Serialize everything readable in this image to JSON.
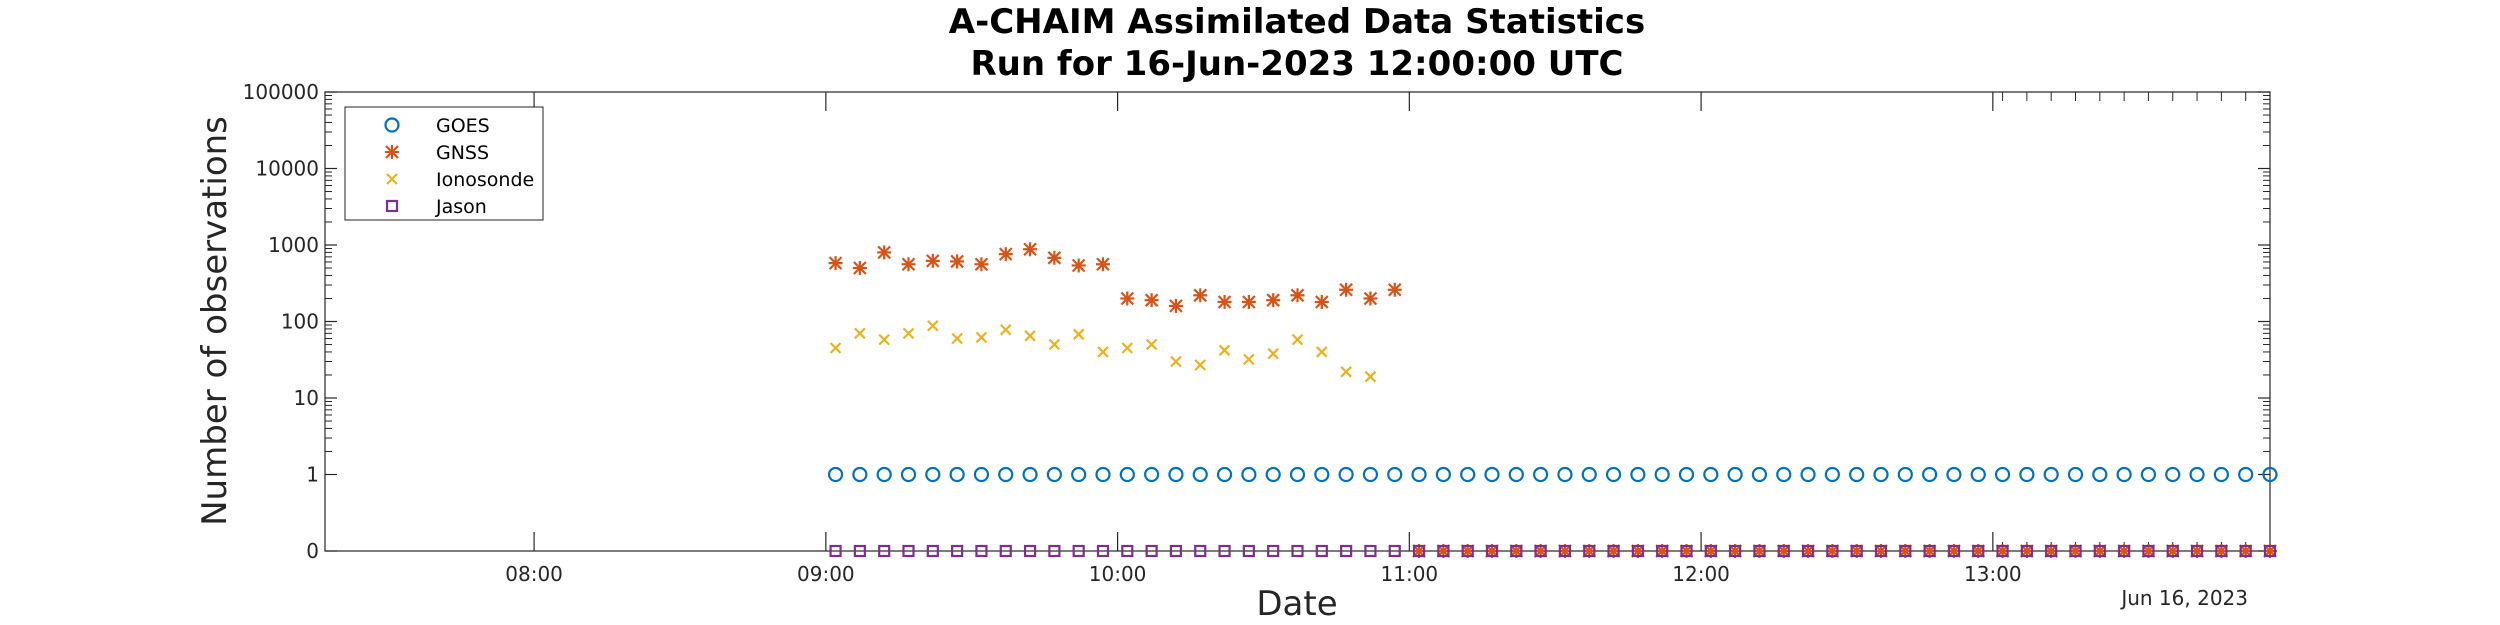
{
  "chart_data": {
    "type": "scatter",
    "title": [
      "A-CHAIM Assimilated Data Statistics",
      "Run for 16-Jun-2023 12:00:00 UTC"
    ],
    "xlabel": "Date",
    "ylabel": "Number of observations",
    "date_label": "Jun 16, 2023",
    "xlim": [
      "07:17",
      "13:57"
    ],
    "ylim": [
      0,
      100000
    ],
    "yscale": "log (zero plotted at bottom)",
    "x_ticks": [
      "08:00",
      "09:00",
      "10:00",
      "11:00",
      "12:00",
      "13:00"
    ],
    "y_ticks": [
      "0",
      "1",
      "10",
      "100",
      "1000",
      "10000",
      "100000"
    ],
    "legend_position": "top-left",
    "grid": false,
    "series": [
      {
        "name": "GOES",
        "marker": "circle",
        "color": "#0072BD",
        "x": [
          "09:02",
          "09:07",
          "09:12",
          "09:17",
          "09:22",
          "09:27",
          "09:32",
          "09:37",
          "09:42",
          "09:47",
          "09:52",
          "09:57",
          "10:02",
          "10:07",
          "10:12",
          "10:17",
          "10:22",
          "10:27",
          "10:32",
          "10:37",
          "10:42",
          "10:47",
          "10:52",
          "10:57",
          "11:02",
          "11:07",
          "11:12",
          "11:17",
          "11:22",
          "11:27",
          "11:32",
          "11:37",
          "11:42",
          "11:47",
          "11:52",
          "11:57",
          "12:02",
          "12:07",
          "12:12",
          "12:17",
          "12:22",
          "12:27",
          "12:32",
          "12:37",
          "12:42",
          "12:47",
          "12:52",
          "12:57",
          "13:02",
          "13:07",
          "13:12",
          "13:17",
          "13:22",
          "13:27",
          "13:32",
          "13:37",
          "13:42",
          "13:47",
          "13:52",
          "13:57"
        ],
        "y": [
          1,
          1,
          1,
          1,
          1,
          1,
          1,
          1,
          1,
          1,
          1,
          1,
          1,
          1,
          1,
          1,
          1,
          1,
          1,
          1,
          1,
          1,
          1,
          1,
          1,
          1,
          1,
          1,
          1,
          1,
          1,
          1,
          1,
          1,
          1,
          1,
          1,
          1,
          1,
          1,
          1,
          1,
          1,
          1,
          1,
          1,
          1,
          1,
          1,
          1,
          1,
          1,
          1,
          1,
          1,
          1,
          1,
          1,
          1,
          1
        ]
      },
      {
        "name": "GNSS",
        "marker": "star",
        "color": "#D95319",
        "x": [
          "09:02",
          "09:07",
          "09:12",
          "09:17",
          "09:22",
          "09:27",
          "09:32",
          "09:37",
          "09:42",
          "09:47",
          "09:52",
          "09:57",
          "10:02",
          "10:07",
          "10:12",
          "10:17",
          "10:22",
          "10:27",
          "10:32",
          "10:37",
          "10:42",
          "10:47",
          "10:52",
          "10:57",
          "11:02",
          "11:07",
          "11:12",
          "11:17",
          "11:22",
          "11:27",
          "11:32",
          "11:37",
          "11:42",
          "11:47",
          "11:52",
          "11:57",
          "12:02",
          "12:07",
          "12:12",
          "12:17",
          "12:22",
          "12:27",
          "12:32",
          "12:37",
          "12:42",
          "12:47",
          "12:52",
          "12:57",
          "13:02",
          "13:07",
          "13:12",
          "13:17",
          "13:22",
          "13:27",
          "13:32",
          "13:37",
          "13:42",
          "13:47",
          "13:52",
          "13:57"
        ],
        "y": [
          580,
          500,
          800,
          560,
          620,
          610,
          560,
          760,
          880,
          680,
          540,
          560,
          200,
          190,
          160,
          220,
          180,
          180,
          190,
          220,
          180,
          260,
          200,
          260,
          0,
          0,
          0,
          0,
          0,
          0,
          0,
          0,
          0,
          0,
          0,
          0,
          0,
          0,
          0,
          0,
          0,
          0,
          0,
          0,
          0,
          0,
          0,
          0,
          0,
          0,
          0,
          0,
          0,
          0,
          0,
          0,
          0,
          0,
          0,
          0
        ]
      },
      {
        "name": "Ionosonde",
        "marker": "x",
        "color": "#EDB120",
        "x": [
          "09:02",
          "09:07",
          "09:12",
          "09:17",
          "09:22",
          "09:27",
          "09:32",
          "09:37",
          "09:42",
          "09:47",
          "09:52",
          "09:57",
          "10:02",
          "10:07",
          "10:12",
          "10:17",
          "10:22",
          "10:27",
          "10:32",
          "10:37",
          "10:42",
          "10:47",
          "10:52"
        ],
        "y": [
          45,
          70,
          58,
          70,
          88,
          60,
          62,
          78,
          65,
          50,
          68,
          40,
          45,
          50,
          30,
          27,
          42,
          32,
          38,
          58,
          40,
          22,
          19
        ]
      },
      {
        "name": "Jason",
        "marker": "square",
        "color": "#7E2F8E",
        "x": [
          "09:02",
          "09:07",
          "09:12",
          "09:17",
          "09:22",
          "09:27",
          "09:32",
          "09:37",
          "09:42",
          "09:47",
          "09:52",
          "09:57",
          "10:02",
          "10:07",
          "10:12",
          "10:17",
          "10:22",
          "10:27",
          "10:32",
          "10:37",
          "10:42",
          "10:47",
          "10:52",
          "10:57",
          "11:02",
          "11:07",
          "11:12",
          "11:17",
          "11:22",
          "11:27",
          "11:32",
          "11:37",
          "11:42",
          "11:47",
          "11:52",
          "11:57",
          "12:02",
          "12:07",
          "12:12",
          "12:17",
          "12:22",
          "12:27",
          "12:32",
          "12:37",
          "12:42",
          "12:47",
          "12:52",
          "12:57",
          "13:02",
          "13:07",
          "13:12",
          "13:17",
          "13:22",
          "13:27",
          "13:32",
          "13:37",
          "13:42",
          "13:47",
          "13:52",
          "13:57"
        ],
        "y": [
          0,
          0,
          0,
          0,
          0,
          0,
          0,
          0,
          0,
          0,
          0,
          0,
          0,
          0,
          0,
          0,
          0,
          0,
          0,
          0,
          0,
          0,
          0,
          0,
          0,
          0,
          0,
          0,
          0,
          0,
          0,
          0,
          0,
          0,
          0,
          0,
          0,
          0,
          0,
          0,
          0,
          0,
          0,
          0,
          0,
          0,
          0,
          0,
          0,
          0,
          0,
          0,
          0,
          0,
          0,
          0,
          0,
          0,
          0,
          0
        ]
      }
    ]
  }
}
